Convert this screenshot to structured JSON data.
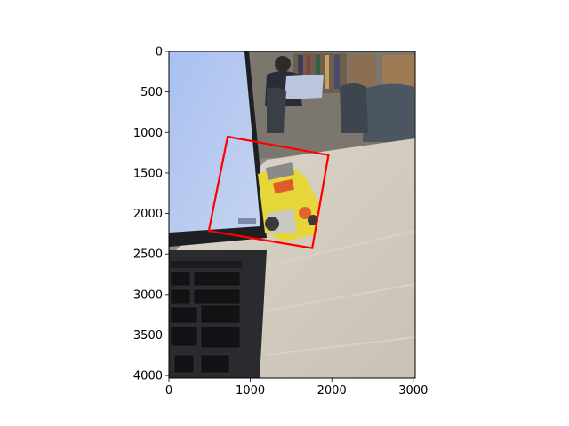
{
  "chart_data": {
    "type": "image",
    "title": "",
    "xlabel": "",
    "ylabel": "",
    "xlim": [
      0,
      3024
    ],
    "ylim": [
      4032,
      0
    ],
    "x_ticks": [
      0,
      1000,
      2000,
      3000
    ],
    "y_ticks": [
      0,
      500,
      1000,
      1500,
      2000,
      2500,
      3000,
      3500,
      4000
    ],
    "annotation": {
      "shape": "quadrilateral",
      "color": "#ff0000",
      "points": [
        [
          722,
          1052
        ],
        [
          1958,
          1279
        ],
        [
          1760,
          2428
        ],
        [
          490,
          2214
        ]
      ]
    },
    "background_image": {
      "description": "photo of laptop, yellow toy truck, wooden table and library"
    }
  }
}
